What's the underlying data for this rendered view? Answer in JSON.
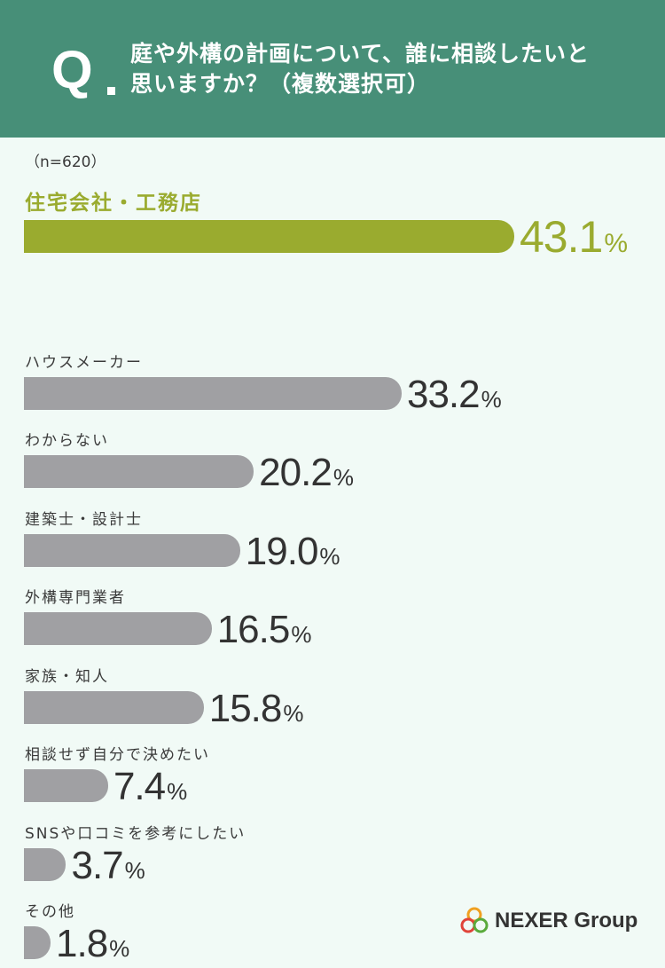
{
  "header": {
    "q_letter": "Q",
    "question_line1": "庭や外構の計画について、誰に相談したいと",
    "question_line2": "思いますか？（複数選択可）"
  },
  "sample_size": "（n=620）",
  "brand": {
    "name": "NEXER Group",
    "icon": "nexer-logo-icon"
  },
  "colors": {
    "header_bg": "#478f78",
    "page_bg": "#f1faf6",
    "highlight": "#9aab2f",
    "bar_gray": "#a0a0a3",
    "text": "#333333"
  },
  "chart_data": {
    "type": "bar",
    "orientation": "horizontal",
    "categories": [
      "住宅会社・工務店",
      "ハウスメーカー",
      "わからない",
      "建築士・設計士",
      "外構専門業者",
      "家族・知人",
      "相談せず自分で決めたい",
      "SNSや口コミを参考にしたい",
      "その他"
    ],
    "values": [
      43.1,
      33.2,
      20.2,
      19.0,
      16.5,
      15.8,
      7.4,
      3.7,
      1.8
    ],
    "value_labels": [
      "43.1",
      "33.2",
      "20.2",
      "19.0",
      "16.5",
      "15.8",
      "7.4",
      "3.7",
      "1.8"
    ],
    "unit": "%",
    "highlight_index": 0,
    "grid": false,
    "legend": "none"
  }
}
